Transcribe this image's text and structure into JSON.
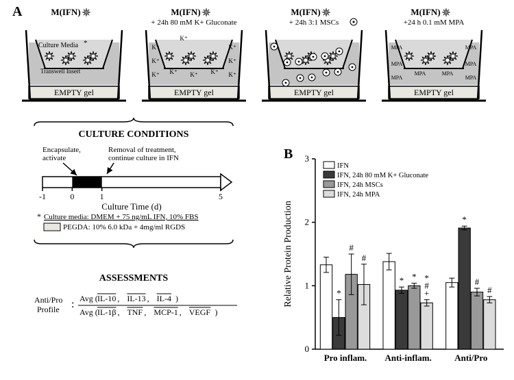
{
  "panels": {
    "A": "A",
    "B": "B"
  },
  "conditions": [
    {
      "title": "M(IFN)",
      "sub": "",
      "particles": "star"
    },
    {
      "title": "M(IFN)",
      "sub": "+ 24h 80 mM K+ Gluconate",
      "particles": "K+"
    },
    {
      "title": "M(IFN)",
      "sub": "+ 24h 3:1 MSCs",
      "particles": "MSC"
    },
    {
      "title": "M(IFN)",
      "sub": "+24 h 0.1 mM MPA",
      "particles": "MPA"
    }
  ],
  "transwell": {
    "culture_media_label": "Culture Media",
    "transwell_label": "Transwell Insert",
    "empty_gel_label": "EMPTY gel",
    "gel_color": "#e8e8e0",
    "media_color": "#c4c4c4",
    "inner_color": "#d9d9d9"
  },
  "timeline": {
    "title": "CULTURE CONDITIONS",
    "encapsulate_label": "Encapsulate,\nactivate",
    "removal_label": "Removal of treatment,\ncontinue culture in IFN",
    "xlabel": "Culture Time (d)",
    "ticks": [
      "-1",
      "0",
      "1",
      "5"
    ],
    "black_start": 0,
    "black_end": 1,
    "total_start": -1,
    "total_end": 5,
    "note_asterisk": "*",
    "note_media": "Culture media: DMEM + 75 ng/mL IFN, 10% FBS",
    "note_pegda": "PEGDA: 10% 6.0 kDa + 4mg/ml RGDS",
    "pegda_color": "#e8e8e0"
  },
  "assessments": {
    "title": "ASSESSMENTS",
    "label": "Anti/Pro\nProfile",
    "colon": ":",
    "numerator": "Avg (IL-10,  IL-13,  IL-4)",
    "denominator": "Avg (IL-1β,  TNF,  MCP-1,  VEGF)"
  },
  "chart": {
    "type": "bar",
    "ylabel": "Relative Protein Production",
    "ylim": [
      0,
      3
    ],
    "yticks": [
      0,
      1,
      2,
      3
    ],
    "categories": [
      "Pro inflam.",
      "Anti-inflam.",
      "Anti/Pro"
    ],
    "series": [
      {
        "name": "IFN",
        "color": "#ffffff",
        "pattern": "none"
      },
      {
        "name": "IFN, 24h 80 mM K+ Gluconate",
        "color": "#3a3a3a",
        "pattern": "none"
      },
      {
        "name": "IFN, 24h MSCs",
        "color": "#999999",
        "pattern": "none"
      },
      {
        "name": "IFN, 24h MPA",
        "color": "#dcdcdc",
        "pattern": "none"
      }
    ],
    "data": [
      {
        "cat": "Pro inflam.",
        "values": [
          1.33,
          0.5,
          1.18,
          1.02
        ],
        "err": [
          0.12,
          0.28,
          0.32,
          0.32
        ],
        "sig": [
          "",
          "*",
          "#",
          "#"
        ]
      },
      {
        "cat": "Anti-inflam.",
        "values": [
          1.38,
          0.93,
          1.0,
          0.73
        ],
        "err": [
          0.13,
          0.05,
          0.04,
          0.05
        ],
        "sig": [
          "",
          "*",
          "*",
          "+#*"
        ]
      },
      {
        "cat": "Anti/Pro",
        "values": [
          1.05,
          1.91,
          0.9,
          0.78
        ],
        "err": [
          0.07,
          0.03,
          0.06,
          0.05
        ],
        "sig": [
          "",
          "*",
          "#",
          "#"
        ]
      }
    ],
    "bar_width": 0.2,
    "axis_color": "#000000",
    "grid": false,
    "label_fontsize": 13,
    "legend_fontsize": 11,
    "bar_border": "#000000"
  }
}
